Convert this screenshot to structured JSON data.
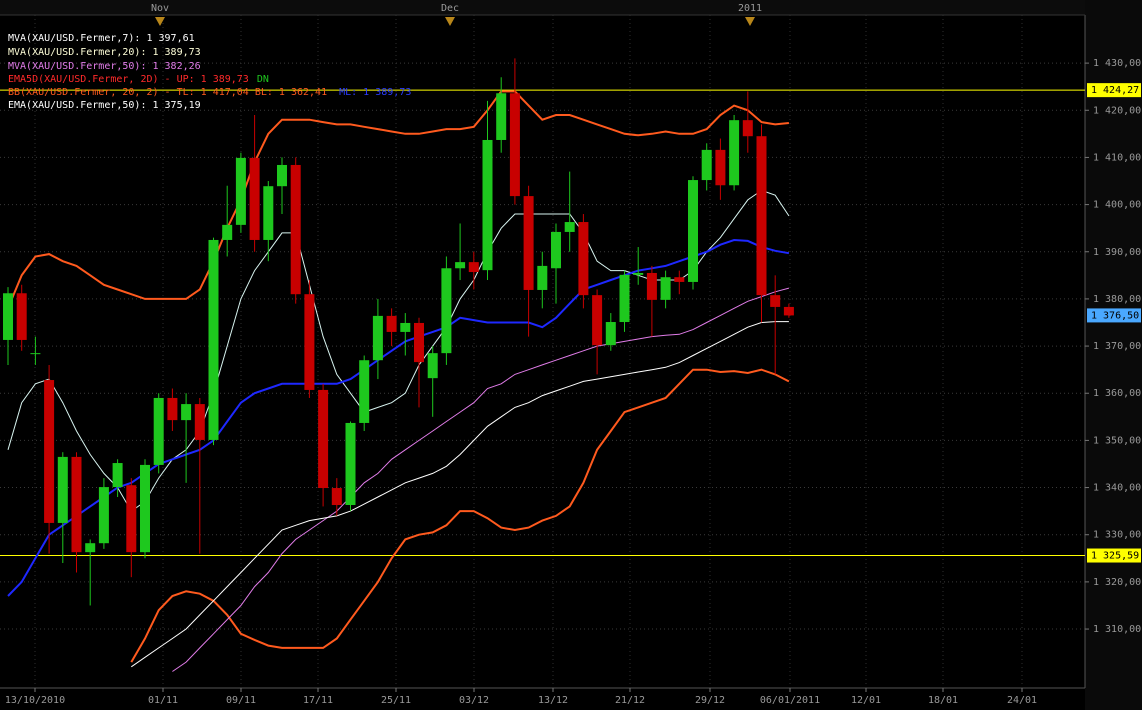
{
  "chart_data": {
    "type": "candlestick",
    "top_labels": [
      "Nov",
      "Dec",
      "2011"
    ],
    "x_labels": [
      "13/10/2010",
      "01/11",
      "09/11",
      "17/11",
      "25/11",
      "03/12",
      "13/12",
      "21/12",
      "29/12",
      "06/01/2011",
      "12/01",
      "18/01",
      "24/01"
    ],
    "up_color": "#1ec81e",
    "down_color": "#c80000",
    "open": [
      1371.3,
      1381.2,
      1368.3,
      1362.8,
      1332.5,
      1346.5,
      1326.3,
      1328.2,
      1340.1,
      1340.5,
      1326.3,
      1344.8,
      1359.0,
      1354.3,
      1357.7,
      1350.1,
      1392.5,
      1395.7,
      1409.9,
      1392.5,
      1403.9,
      1408.4,
      1381.0,
      1360.7,
      1339.9,
      1336.3,
      1353.7,
      1367.0,
      1376.4,
      1373.0,
      1374.9,
      1363.2,
      1368.5,
      1386.5,
      1387.8,
      1386.1,
      1413.7,
      1423.6,
      1401.8,
      1381.9,
      1386.5,
      1394.2,
      1396.3,
      1380.8,
      1370.2,
      1375.1,
      1385.1,
      1385.5,
      1379.8,
      1384.6,
      1383.6,
      1405.2,
      1411.6,
      1404.1,
      1417.9,
      1414.5,
      1380.8,
      1378.3
    ],
    "high": [
      1382.5,
      1383,
      1372,
      1366,
      1347.5,
      1347.5,
      1329,
      1342,
      1346,
      1342,
      1346,
      1360,
      1361,
      1360,
      1359,
      1393,
      1404,
      1411,
      1419,
      1405,
      1410,
      1410,
      1384,
      1362,
      1342,
      1354,
      1368,
      1380,
      1378,
      1377,
      1376,
      1370,
      1389,
      1396,
      1390,
      1422,
      1427,
      1431,
      1404,
      1390,
      1396,
      1407,
      1398,
      1382,
      1377,
      1386,
      1391,
      1387,
      1386,
      1386,
      1406,
      1413,
      1414,
      1419,
      1424,
      1417,
      1385,
      1379
    ],
    "low": [
      1366,
      1369,
      1366,
      1326,
      1324,
      1322,
      1315,
      1327,
      1338,
      1321,
      1325,
      1343,
      1352,
      1341,
      1326,
      1349,
      1389,
      1394,
      1390,
      1388,
      1398,
      1379,
      1359,
      1336,
      1334,
      1335,
      1352,
      1363,
      1370,
      1368,
      1357,
      1355,
      1366,
      1384,
      1382,
      1384,
      1411,
      1400,
      1372,
      1378,
      1379,
      1390,
      1378,
      1364,
      1369,
      1373,
      1383,
      1372,
      1378,
      1381,
      1382,
      1403,
      1401,
      1403,
      1411,
      1375,
      1364,
      1376
    ],
    "close": [
      1381.2,
      1371.3,
      1368.5,
      1332.5,
      1346.5,
      1326.3,
      1328.2,
      1340.1,
      1345.2,
      1326.3,
      1344.8,
      1359.0,
      1354.3,
      1357.7,
      1350.1,
      1392.5,
      1395.7,
      1409.9,
      1392.5,
      1403.9,
      1408.4,
      1381.0,
      1360.7,
      1339.9,
      1336.3,
      1353.7,
      1367.0,
      1376.4,
      1373.0,
      1374.9,
      1366.6,
      1368.5,
      1386.5,
      1387.8,
      1385.7,
      1413.7,
      1423.6,
      1401.8,
      1381.9,
      1387.0,
      1394.2,
      1396.3,
      1380.8,
      1370.2,
      1375.1,
      1385.1,
      1385.5,
      1379.8,
      1384.6,
      1383.6,
      1405.2,
      1411.6,
      1404.1,
      1417.9,
      1414.5,
      1380.8,
      1378.3,
      1376.5
    ],
    "series": [
      {
        "name": "MVA(XAU/USD.Fermer,7): 1 397,61",
        "color": "#d8f4f0",
        "label_color": "#ffffff",
        "values": [
          1348,
          1358,
          1362,
          1363,
          1358,
          1352,
          1347,
          1343,
          1340,
          1335,
          1337,
          1342,
          1346,
          1348,
          1352,
          1360,
          1370,
          1380,
          1386,
          1390,
          1394,
          1394,
          1383,
          1372,
          1364,
          1360,
          1356,
          1357,
          1358,
          1360,
          1366,
          1370,
          1374,
          1380,
          1384,
          1390,
          1395,
          1398,
          1398,
          1398,
          1398,
          1398,
          1394,
          1388,
          1386,
          1386,
          1385,
          1384,
          1384,
          1384,
          1386,
          1390,
          1393,
          1397,
          1401,
          1403,
          1402,
          1397.6
        ]
      },
      {
        "name": "MVA(XAU/USD.Fermer,20): 1 389,73",
        "color": "#1e28ff",
        "label_color": "#ffffd8",
        "values": [
          1317,
          1320,
          1325,
          1330,
          1332,
          1334,
          1336,
          1338,
          1340,
          1341,
          1343,
          1345,
          1346,
          1347,
          1348,
          1350,
          1354,
          1358,
          1360,
          1361,
          1362,
          1362,
          1362,
          1362,
          1362,
          1363,
          1365,
          1367,
          1369,
          1371,
          1372,
          1373,
          1374,
          1376,
          1375.5,
          1375,
          1375,
          1375,
          1375,
          1374,
          1376,
          1379,
          1382,
          1383,
          1384,
          1385,
          1386,
          1386.5,
          1387,
          1388,
          1389,
          1390,
          1391.5,
          1392.5,
          1392.3,
          1391,
          1390.2,
          1389.7
        ]
      },
      {
        "name": "MVA(XAU/USD.Fermer,50): 1 382,26",
        "color": "#e07ce8",
        "label_color": "#e07ce8",
        "values": [
          null,
          null,
          null,
          null,
          null,
          null,
          null,
          null,
          null,
          null,
          null,
          null,
          1301,
          1303,
          1306,
          1309,
          1312,
          1315,
          1319,
          1322,
          1326,
          1329,
          1331,
          1333,
          1335,
          1338,
          1341,
          1343,
          1346,
          1348,
          1350,
          1352,
          1354,
          1356,
          1358,
          1361,
          1362,
          1364,
          1365,
          1366,
          1367,
          1368,
          1369,
          1370,
          1370.5,
          1371,
          1371.5,
          1372,
          1372.3,
          1372.5,
          1373.5,
          1375,
          1376.5,
          1378,
          1379.5,
          1380.5,
          1381.5,
          1382.3
        ]
      },
      {
        "name": "EMA(XAU/USD.Fermer,50): 1 375,19",
        "color": "#ffffff",
        "label_color": "#ffffff",
        "values": [
          null,
          null,
          null,
          null,
          null,
          null,
          null,
          null,
          null,
          1302,
          1304,
          1306,
          1308,
          1310,
          1313,
          1316,
          1319,
          1322,
          1325,
          1328,
          1331,
          1332,
          1333,
          1333.5,
          1334,
          1335,
          1336.5,
          1338,
          1339.5,
          1341,
          1342,
          1343,
          1344.5,
          1347,
          1350,
          1353,
          1355,
          1357,
          1358,
          1359.5,
          1360.5,
          1361.5,
          1362.5,
          1363,
          1363.5,
          1364,
          1364.5,
          1365,
          1365.5,
          1366.5,
          1368,
          1369.5,
          1371,
          1372.5,
          1374,
          1375,
          1375.2,
          1375.2
        ]
      }
    ],
    "envelope": {
      "name": "EMA5D(XAU/USD.Fermer, 2D) - UP: 1 389,73",
      "color": "#ff2a2a",
      "dn_label": "DN",
      "dn_color": "#1ec81e"
    },
    "bollinger": {
      "name": "BB(XAU/USD.Fermer, 20, 2) - TL: 1 417,04  BL: 1 362,41",
      "color": "#ff5a1e",
      "ml_label": "ML: 1 389,73",
      "ml_color": "#2a3cff",
      "upper": [
        1378,
        1385,
        1389,
        1389.5,
        1388,
        1387,
        1385,
        1383,
        1382,
        1381,
        1380,
        1380,
        1380,
        1380,
        1382,
        1388,
        1395,
        1401,
        1409,
        1415,
        1418,
        1418,
        1418,
        1417.5,
        1417,
        1417,
        1416.5,
        1416,
        1415.5,
        1415,
        1415,
        1415.5,
        1416,
        1416,
        1416.5,
        1420,
        1424,
        1424,
        1421,
        1418,
        1419,
        1419,
        1418,
        1417,
        1416,
        1415,
        1414.7,
        1415,
        1415.5,
        1415,
        1415,
        1416,
        1419,
        1421,
        1420,
        1417.5,
        1417,
        1417.3
      ],
      "lower": [
        null,
        null,
        null,
        null,
        null,
        null,
        null,
        null,
        null,
        1303,
        1308,
        1314,
        1317,
        1318,
        1317.5,
        1316,
        1313,
        1309,
        1307.7,
        1306.5,
        1306,
        1306,
        1306,
        1306,
        1308,
        1312,
        1316,
        1320,
        1325,
        1329,
        1330,
        1330.5,
        1332,
        1335,
        1335,
        1333.5,
        1331.5,
        1331,
        1331.5,
        1333,
        1334,
        1336,
        1341,
        1348,
        1352,
        1356,
        1357,
        1358,
        1359,
        1362,
        1365,
        1365,
        1364.5,
        1364.7,
        1364.3,
        1365,
        1364,
        1362.5
      ]
    },
    "hlines": [
      {
        "value": 1424.27,
        "label": "1 424,27",
        "color": "#ffff00"
      },
      {
        "value": 1325.59,
        "label": "1 325,59",
        "color": "#ffff00"
      }
    ],
    "last_price": {
      "value": 1376.5,
      "label": "1 376,50",
      "color": "#4aa8ff"
    },
    "ylim": [
      1297.5,
      1440.2
    ],
    "yticks": [
      {
        "value": 1310,
        "label": "1 310,00"
      },
      {
        "value": 1320,
        "label": "1 320,00"
      },
      {
        "value": 1330,
        "label": "1 330,00"
      },
      {
        "value": 1340,
        "label": "1 340,00"
      },
      {
        "value": 1350,
        "label": "1 350,00"
      },
      {
        "value": 1360,
        "label": "1 360,00"
      },
      {
        "value": 1370,
        "label": "1 370,00"
      },
      {
        "value": 1380,
        "label": "1 380,00"
      },
      {
        "value": 1390,
        "label": "1 390,00"
      },
      {
        "value": 1400,
        "label": "1 400,00"
      },
      {
        "value": 1410,
        "label": "1 410,00"
      },
      {
        "value": 1420,
        "label": "1 420,00"
      },
      {
        "value": 1430,
        "label": "1 430,00"
      }
    ],
    "grid": true
  }
}
